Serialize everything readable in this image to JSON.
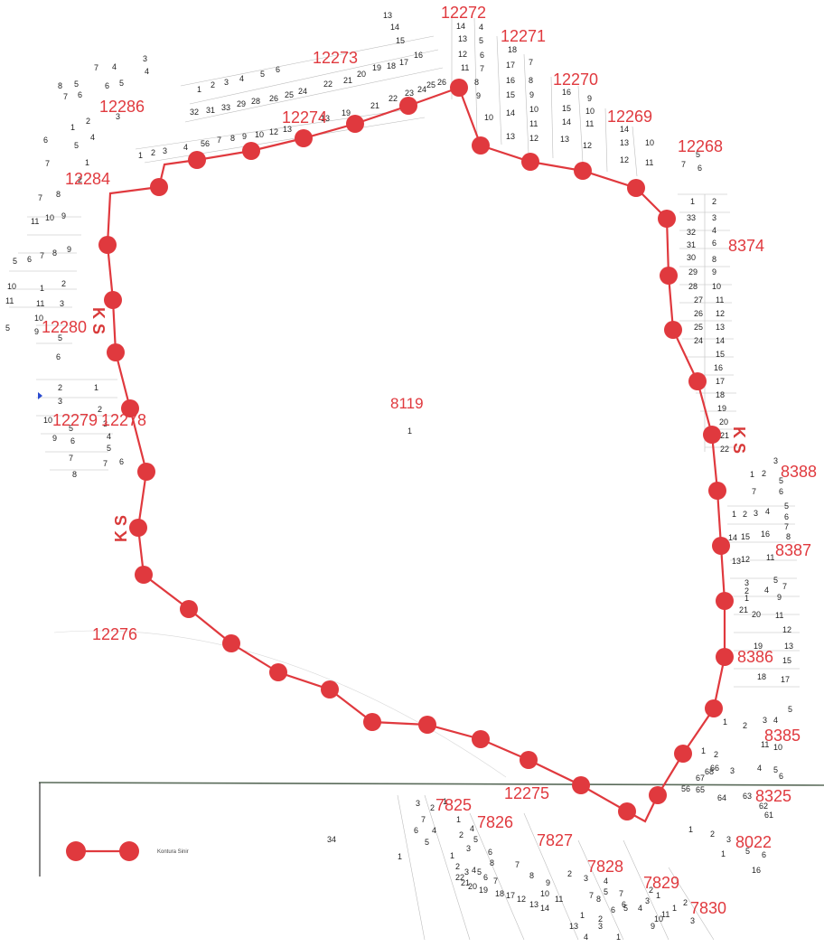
{
  "map": {
    "central_parcel": "8119",
    "central_parcel_sub": "1",
    "boundary_color": "#e0393e",
    "boundary_marker_color": "#e0393e",
    "ks_marks": [
      "K S",
      "K S",
      "K S"
    ],
    "legend_label": "Kontura Sinir",
    "block_labels": [
      "12272",
      "12271",
      "12273",
      "12270",
      "12286",
      "12269",
      "12274",
      "12268",
      "12284",
      "8374",
      "12280",
      "12279",
      "12278",
      "8388",
      "8387",
      "12276",
      "8386",
      "8385",
      "12275",
      "8325",
      "7825",
      "7826",
      "7827",
      "8022",
      "7828",
      "7829",
      "7830"
    ],
    "misc_labels": [
      "34"
    ]
  }
}
